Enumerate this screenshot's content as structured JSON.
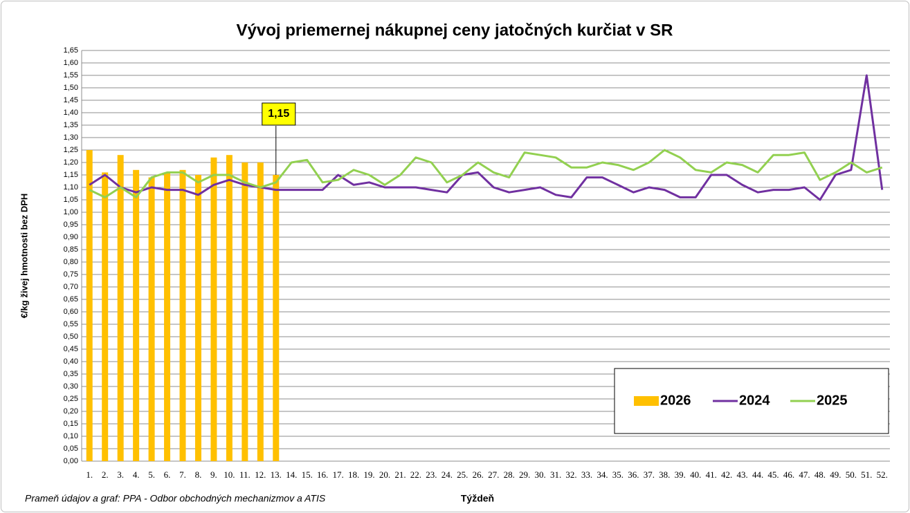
{
  "chart_data": {
    "type": "combo",
    "title": "Vývoj priemernej nákupnej ceny jatočných kurčiat v SR",
    "x_label": "Týždeň",
    "y_label": "€/kg živej hmotnosti bez DPH",
    "source": "Prameň údajov a graf: PPA - Odbor obchodných mechanizmov a ATIS",
    "categories": [
      "1.",
      "2.",
      "3.",
      "4.",
      "5.",
      "6.",
      "7.",
      "8.",
      "9.",
      "10.",
      "11.",
      "12.",
      "13.",
      "14.",
      "15.",
      "16.",
      "17.",
      "18.",
      "19.",
      "20.",
      "21.",
      "22.",
      "23.",
      "24.",
      "25.",
      "26.",
      "27.",
      "28.",
      "29.",
      "30.",
      "31.",
      "32.",
      "33.",
      "34.",
      "35.",
      "36.",
      "37.",
      "38.",
      "39.",
      "40.",
      "41.",
      "42.",
      "43.",
      "44.",
      "45.",
      "46.",
      "47.",
      "48.",
      "49.",
      "50.",
      "51.",
      "52."
    ],
    "series": [
      {
        "name": "2026",
        "type": "bar",
        "color": "#FFC000",
        "values": [
          1.25,
          1.16,
          1.23,
          1.17,
          1.14,
          1.16,
          1.17,
          1.15,
          1.22,
          1.23,
          1.2,
          1.2,
          1.15,
          null,
          null,
          null,
          null,
          null,
          null,
          null,
          null,
          null,
          null,
          null,
          null,
          null,
          null,
          null,
          null,
          null,
          null,
          null,
          null,
          null,
          null,
          null,
          null,
          null,
          null,
          null,
          null,
          null,
          null,
          null,
          null,
          null,
          null,
          null,
          null,
          null,
          null,
          null
        ],
        "value_labels": [
          null,
          null,
          null,
          null,
          null,
          null,
          null,
          null,
          null,
          null,
          null,
          null,
          "1,15",
          null,
          null,
          null,
          null,
          null,
          null,
          null,
          null,
          null,
          null,
          null,
          null,
          null,
          null,
          null,
          null,
          null,
          null,
          null,
          null,
          null,
          null,
          null,
          null,
          null,
          null,
          null,
          null,
          null,
          null,
          null,
          null,
          null,
          null,
          null,
          null,
          null,
          null,
          null
        ]
      },
      {
        "name": "2024",
        "type": "line",
        "color": "#7030A0",
        "values": [
          1.11,
          1.15,
          1.1,
          1.08,
          1.1,
          1.09,
          1.09,
          1.07,
          1.11,
          1.13,
          1.11,
          1.1,
          1.09,
          1.09,
          1.09,
          1.09,
          1.15,
          1.11,
          1.12,
          1.1,
          1.1,
          1.1,
          1.09,
          1.08,
          1.15,
          1.16,
          1.1,
          1.08,
          1.09,
          1.1,
          1.07,
          1.06,
          1.14,
          1.14,
          1.11,
          1.08,
          1.1,
          1.09,
          1.06,
          1.06,
          1.15,
          1.15,
          1.11,
          1.08,
          1.09,
          1.09,
          1.1,
          1.05,
          1.15,
          1.17,
          1.55,
          1.09
        ]
      },
      {
        "name": "2025",
        "type": "line",
        "color": "#92D050",
        "values": [
          1.09,
          1.06,
          1.1,
          1.06,
          1.14,
          1.16,
          1.16,
          1.12,
          1.15,
          1.15,
          1.12,
          1.1,
          1.12,
          1.2,
          1.21,
          1.12,
          1.13,
          1.17,
          1.15,
          1.11,
          1.15,
          1.22,
          1.2,
          1.12,
          1.15,
          1.2,
          1.16,
          1.14,
          1.24,
          1.23,
          1.22,
          1.18,
          1.18,
          1.2,
          1.19,
          1.17,
          1.2,
          1.25,
          1.22,
          1.17,
          1.16,
          1.2,
          1.19,
          1.16,
          1.23,
          1.23,
          1.24,
          1.13,
          1.16,
          1.2,
          1.16,
          1.18
        ]
      }
    ],
    "ylim": [
      0,
      1.65
    ],
    "yticks": [
      {
        "value": 0,
        "label": "0,00"
      },
      {
        "value": 0.05,
        "label": "0,05"
      },
      {
        "value": 0.1,
        "label": "0,10"
      },
      {
        "value": 0.15,
        "label": "0,15"
      },
      {
        "value": 0.2,
        "label": "0,20"
      },
      {
        "value": 0.25,
        "label": "0,25"
      },
      {
        "value": 0.3,
        "label": "0,30"
      },
      {
        "value": 0.35,
        "label": "0,35"
      },
      {
        "value": 0.4,
        "label": "0,40"
      },
      {
        "value": 0.45,
        "label": "0,45"
      },
      {
        "value": 0.5,
        "label": "0,50"
      },
      {
        "value": 0.55,
        "label": "0,55"
      },
      {
        "value": 0.6,
        "label": "0,60"
      },
      {
        "value": 0.65,
        "label": "0,65"
      },
      {
        "value": 0.7,
        "label": "0,70"
      },
      {
        "value": 0.75,
        "label": "0,75"
      },
      {
        "value": 0.8,
        "label": "0,80"
      },
      {
        "value": 0.85,
        "label": "0,85"
      },
      {
        "value": 0.9,
        "label": "0,90"
      },
      {
        "value": 0.95,
        "label": "0,95"
      },
      {
        "value": 1,
        "label": "1,00"
      },
      {
        "value": 1.05,
        "label": "1,05"
      },
      {
        "value": 1.1,
        "label": "1,10"
      },
      {
        "value": 1.15,
        "label": "1,15"
      },
      {
        "value": 1.2,
        "label": "1,20"
      },
      {
        "value": 1.25,
        "label": "1,25"
      },
      {
        "value": 1.3,
        "label": "1,30"
      },
      {
        "value": 1.35,
        "label": "1,35"
      },
      {
        "value": 1.4,
        "label": "1,40"
      },
      {
        "value": 1.45,
        "label": "1,45"
      },
      {
        "value": 1.5,
        "label": "1,50"
      },
      {
        "value": 1.55,
        "label": "1,55"
      },
      {
        "value": 1.6,
        "label": "1,60"
      },
      {
        "value": 1.65,
        "label": "1,65"
      }
    ],
    "grid": true,
    "legend": "lower right"
  }
}
